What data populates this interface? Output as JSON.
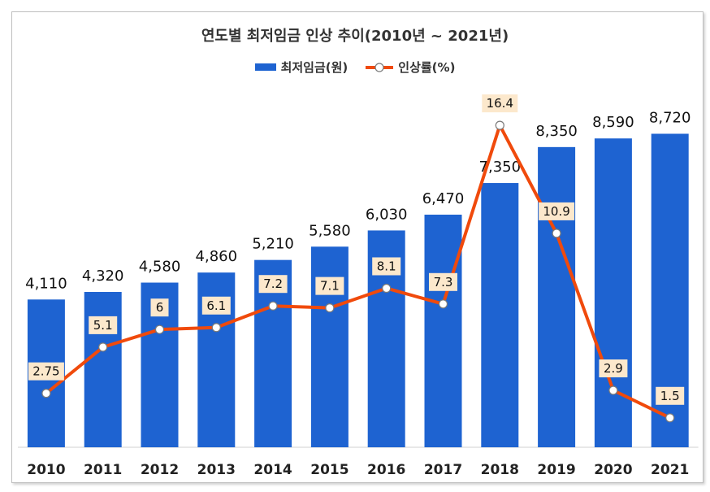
{
  "chart_data": {
    "type": "bar",
    "title": "연도별 최저임금 인상 추이(2010년 ~ 2021년)",
    "categories": [
      "2010",
      "2011",
      "2012",
      "2013",
      "2014",
      "2015",
      "2016",
      "2017",
      "2018",
      "2019",
      "2020",
      "2021"
    ],
    "series": [
      {
        "name": "최저임금(원)",
        "type": "bar",
        "color": "#1e63d1",
        "values": [
          4110,
          4320,
          4580,
          4860,
          5210,
          5580,
          6030,
          6470,
          7350,
          8350,
          8590,
          8720
        ],
        "labels": [
          "4,110",
          "4,320",
          "4,580",
          "4,860",
          "5,210",
          "5,580",
          "6,030",
          "6,470",
          "7,350",
          "8,350",
          "8,590",
          "8,720"
        ]
      },
      {
        "name": "인상률(%)",
        "type": "line",
        "color": "#f04a0c",
        "values": [
          2.75,
          5.1,
          6,
          6.1,
          7.2,
          7.1,
          8.1,
          7.3,
          16.4,
          10.9,
          2.9,
          1.5
        ],
        "labels": [
          "2.75",
          "5.1",
          "6",
          "6.1",
          "7.2",
          "7.1",
          "8.1",
          "7.3",
          "16.4",
          "10.9",
          "2.9",
          "1.5"
        ]
      }
    ],
    "ylim_bar": [
      0,
      9500
    ],
    "ylim_line": [
      0,
      17.4
    ],
    "legend_position": "top-center",
    "grid": false
  }
}
